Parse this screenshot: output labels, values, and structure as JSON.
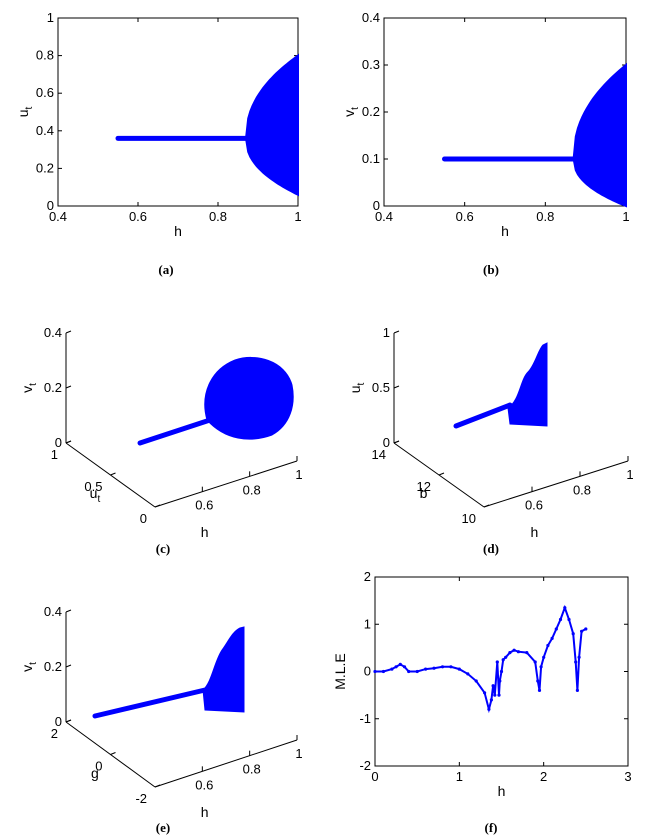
{
  "chart_data": [
    {
      "panel": "a",
      "type": "scatter",
      "caption": "(a)",
      "xlabel": "h",
      "ylabel": "u",
      "ylabel_sub": "t",
      "xlim": [
        0.4,
        1
      ],
      "ylim": [
        0,
        1
      ],
      "xticks": [
        "0.4",
        "0.6",
        "0.8",
        "1"
      ],
      "yticks": [
        "0",
        "0.2",
        "0.4",
        "0.6",
        "0.8",
        "1"
      ],
      "color": "#0000ff",
      "series": [
        {
          "h_start": 0.55,
          "h_bifurcation": 0.87,
          "fixed_value": 0.36,
          "h_end": 1.0,
          "lower_at_end": 0.06,
          "upper_at_end": 0.8
        }
      ]
    },
    {
      "panel": "b",
      "type": "scatter",
      "caption": "(b)",
      "xlabel": "h",
      "ylabel": "v",
      "ylabel_sub": "t",
      "xlim": [
        0.4,
        1
      ],
      "ylim": [
        0,
        0.4
      ],
      "xticks": [
        "0.4",
        "0.6",
        "0.8",
        "1"
      ],
      "yticks": [
        "0",
        "0.1",
        "0.2",
        "0.3",
        "0.4"
      ],
      "color": "#0000ff",
      "series": [
        {
          "h_start": 0.55,
          "h_bifurcation": 0.87,
          "fixed_value": 0.1,
          "h_end": 1.0,
          "lower_at_end": 0.0,
          "upper_at_end": 0.3
        }
      ]
    },
    {
      "panel": "c",
      "type": "scatter3d",
      "caption": "(c)",
      "xlabel": "h",
      "ylabel": "u",
      "ylabel_sub": "t",
      "zlabel": "v",
      "zlabel_sub": "t",
      "xticks": [
        "0.6",
        "0.8",
        "1"
      ],
      "yticks": [
        "0",
        "0.5",
        "1"
      ],
      "zticks": [
        "0",
        "0.2",
        "0.4"
      ],
      "color": "#0000ff"
    },
    {
      "panel": "d",
      "type": "scatter3d",
      "caption": "(d)",
      "xlabel": "h",
      "ylabel": "b",
      "zlabel": "u",
      "zlabel_sub": "t",
      "xticks": [
        "0.6",
        "0.8",
        "1"
      ],
      "yticks": [
        "10",
        "12",
        "14"
      ],
      "zticks": [
        "0",
        "0.5",
        "1"
      ],
      "color": "#0000ff"
    },
    {
      "panel": "e",
      "type": "scatter3d",
      "caption": "(e)",
      "xlabel": "h",
      "ylabel": "g",
      "zlabel": "v",
      "zlabel_sub": "t",
      "xticks": [
        "0.6",
        "0.8",
        "1"
      ],
      "yticks": [
        "-2",
        "0",
        "2"
      ],
      "zticks": [
        "0",
        "0.2",
        "0.4"
      ],
      "color": "#0000ff"
    },
    {
      "panel": "f",
      "type": "scatter",
      "caption": "(f)",
      "xlabel": "h",
      "ylabel": "M.L.E",
      "xlim": [
        0,
        3
      ],
      "ylim": [
        -2,
        2
      ],
      "xticks": [
        "0",
        "1",
        "2",
        "3"
      ],
      "yticks": [
        "-2",
        "-1",
        "0",
        "1",
        "2"
      ],
      "color": "#0000ff",
      "x": [
        0.0,
        0.1,
        0.2,
        0.25,
        0.3,
        0.35,
        0.4,
        0.5,
        0.6,
        0.7,
        0.8,
        0.9,
        1.0,
        1.1,
        1.2,
        1.3,
        1.35,
        1.38,
        1.4,
        1.42,
        1.45,
        1.47,
        1.48,
        1.5,
        1.52,
        1.55,
        1.6,
        1.65,
        1.7,
        1.8,
        1.9,
        1.93,
        1.95,
        1.97,
        2.0,
        2.05,
        2.1,
        2.15,
        2.2,
        2.25,
        2.3,
        2.35,
        2.38,
        2.4,
        2.42,
        2.45,
        2.5
      ],
      "y": [
        0.0,
        0.0,
        0.05,
        0.1,
        0.15,
        0.1,
        0.0,
        0.0,
        0.05,
        0.07,
        0.1,
        0.1,
        0.05,
        -0.05,
        -0.2,
        -0.45,
        -0.8,
        -0.6,
        -0.3,
        -0.5,
        0.2,
        -0.5,
        -0.2,
        0.0,
        0.25,
        0.3,
        0.4,
        0.45,
        0.42,
        0.4,
        0.2,
        -0.2,
        -0.4,
        0.1,
        0.3,
        0.55,
        0.7,
        0.9,
        1.1,
        1.35,
        1.1,
        0.8,
        0.2,
        -0.4,
        0.3,
        0.85,
        0.9
      ]
    }
  ]
}
